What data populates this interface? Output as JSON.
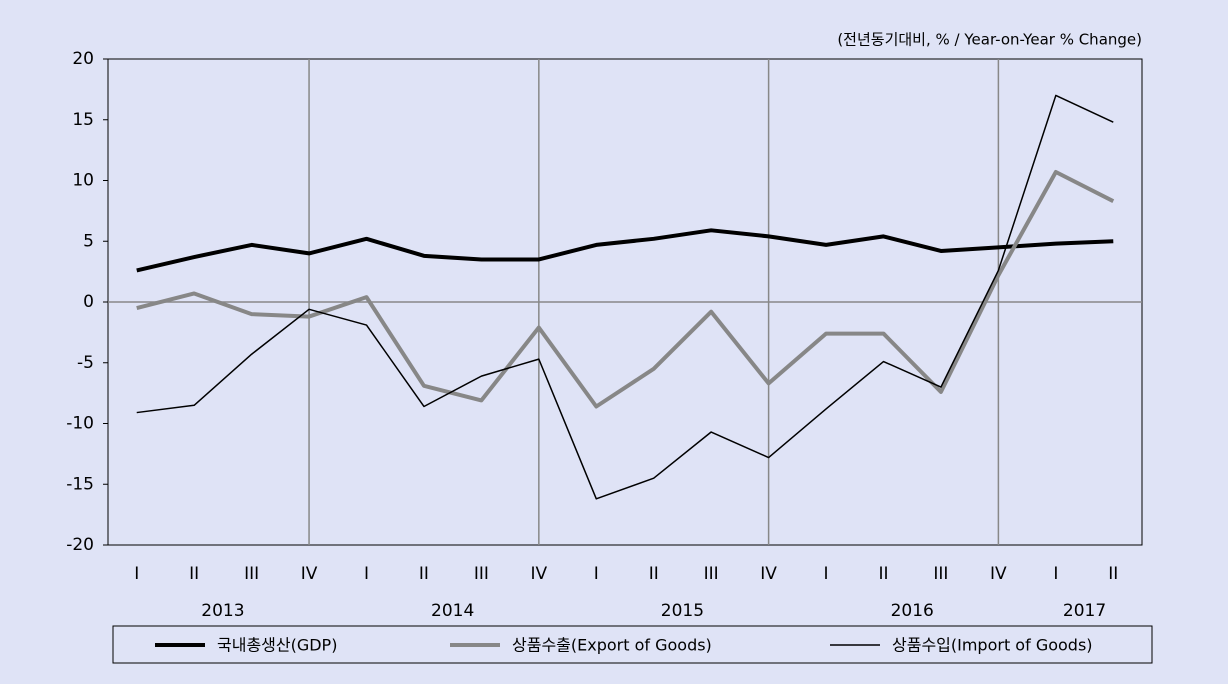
{
  "chart_data": {
    "type": "line",
    "note": "(전년동기대비, % / Year-on-Year % Change)",
    "categories": [
      "I",
      "II",
      "III",
      "IV",
      "I",
      "II",
      "III",
      "IV",
      "I",
      "II",
      "III",
      "IV",
      "I",
      "II",
      "III",
      "IV",
      "I",
      "II"
    ],
    "years": [
      "2013",
      "2014",
      "2015",
      "2016",
      "2017"
    ],
    "series": [
      {
        "name": "국내총생산(GDP)",
        "color": "#000000",
        "line_width": 4,
        "values": [
          2.6,
          3.7,
          4.7,
          4.0,
          5.2,
          3.8,
          3.5,
          3.5,
          4.7,
          5.2,
          5.9,
          5.4,
          4.7,
          5.4,
          4.2,
          4.5,
          4.8,
          5.0
        ]
      },
      {
        "name": "상품수출(Export of Goods)",
        "color": "#878787",
        "line_width": 4,
        "values": [
          -0.5,
          0.7,
          -1.0,
          -1.2,
          0.4,
          -6.9,
          -8.1,
          -2.1,
          -8.6,
          -5.5,
          -0.8,
          -6.7,
          -2.6,
          -2.6,
          -7.4,
          2.2,
          10.7,
          8.3
        ]
      },
      {
        "name": "상품수입(Import of Goods)",
        "color": "#000000",
        "line_width": 1.5,
        "values": [
          -9.1,
          -8.5,
          -4.3,
          -0.6,
          -1.9,
          -8.6,
          -6.1,
          -4.7,
          -16.2,
          -14.5,
          -10.7,
          -12.8,
          -8.8,
          -4.9,
          -7.0,
          2.6,
          17.0,
          14.8
        ]
      }
    ],
    "ylim": [
      -20,
      20
    ],
    "yticks": [
      -20,
      -15,
      -10,
      -5,
      0,
      5,
      10,
      15,
      20
    ]
  }
}
